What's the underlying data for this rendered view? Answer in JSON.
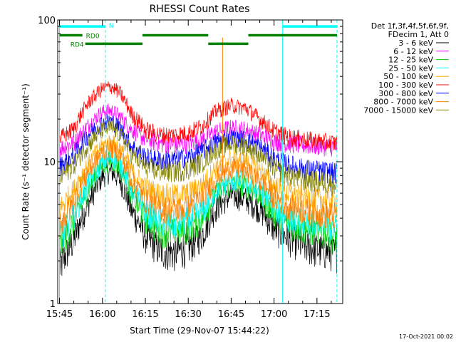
{
  "chart_data": {
    "type": "line",
    "title": "RHESSI Count Rates",
    "xlabel": "Start Time (29-Nov-07 15:44:22)",
    "ylabel": "Count Rate (s⁻¹ detector segment⁻¹)",
    "yscale": "log",
    "ylim": [
      1,
      100
    ],
    "xlim": [
      "15:44:22",
      "17:24:00"
    ],
    "x_ticks": [
      "15:45",
      "16:00",
      "16:15",
      "16:30",
      "16:45",
      "17:00",
      "17:15"
    ],
    "y_ticks": [
      "1",
      "10",
      "100"
    ],
    "grid": false,
    "legend": {
      "placement": "right",
      "header": [
        "Det 1f,3f,4f,5f,6f,9f,",
        "FDecim 1, Att 0"
      ]
    },
    "series": [
      {
        "name": "3 - 6 keV",
        "color": "#000000",
        "points": [
          [
            "15:45",
            1.8
          ],
          [
            "15:50",
            2.8
          ],
          [
            "15:55",
            5.0
          ],
          [
            "16:00",
            7.9
          ],
          [
            "16:03",
            8.6
          ],
          [
            "16:06",
            7.5
          ],
          [
            "16:10",
            4.6
          ],
          [
            "16:15",
            3.0
          ],
          [
            "16:20",
            2.4
          ],
          [
            "16:25",
            2.3
          ],
          [
            "16:30",
            2.5
          ],
          [
            "16:35",
            3.1
          ],
          [
            "16:40",
            4.8
          ],
          [
            "16:45",
            5.8
          ],
          [
            "16:50",
            5.5
          ],
          [
            "16:55",
            4.6
          ],
          [
            "17:00",
            3.4
          ],
          [
            "17:05",
            2.9
          ],
          [
            "17:10",
            2.6
          ],
          [
            "17:15",
            2.4
          ],
          [
            "17:22",
            2.3
          ]
        ]
      },
      {
        "name": "6 - 12 keV",
        "color": "#ff00ff",
        "points": [
          [
            "15:45",
            12.5
          ],
          [
            "15:50",
            13.5
          ],
          [
            "15:55",
            18.0
          ],
          [
            "16:00",
            22.5
          ],
          [
            "16:03",
            23.0
          ],
          [
            "16:06",
            21.0
          ],
          [
            "16:10",
            17.0
          ],
          [
            "16:15",
            14.5
          ],
          [
            "16:20",
            13.5
          ],
          [
            "16:25",
            13.2
          ],
          [
            "16:30",
            13.5
          ],
          [
            "16:35",
            14.5
          ],
          [
            "16:40",
            16.5
          ],
          [
            "16:45",
            17.5
          ],
          [
            "16:50",
            17.0
          ],
          [
            "16:55",
            15.5
          ],
          [
            "17:00",
            14.0
          ],
          [
            "17:05",
            13.5
          ],
          [
            "17:10",
            13.2
          ],
          [
            "17:15",
            13.0
          ],
          [
            "17:22",
            12.8
          ]
        ]
      },
      {
        "name": "12 - 25 keV",
        "color": "#00cc00",
        "points": [
          [
            "15:45",
            2.5
          ],
          [
            "15:50",
            3.8
          ],
          [
            "15:55",
            6.3
          ],
          [
            "16:00",
            9.5
          ],
          [
            "16:03",
            10.3
          ],
          [
            "16:06",
            9.2
          ],
          [
            "16:10",
            5.9
          ],
          [
            "16:15",
            4.0
          ],
          [
            "16:20",
            3.3
          ],
          [
            "16:25",
            3.2
          ],
          [
            "16:30",
            3.4
          ],
          [
            "16:35",
            4.0
          ],
          [
            "16:40",
            6.0
          ],
          [
            "16:45",
            7.0
          ],
          [
            "16:50",
            6.8
          ],
          [
            "16:55",
            5.8
          ],
          [
            "17:00",
            4.3
          ],
          [
            "17:05",
            3.7
          ],
          [
            "17:10",
            3.4
          ],
          [
            "17:15",
            3.2
          ],
          [
            "17:22",
            3.0
          ]
        ]
      },
      {
        "name": "25 - 50 keV",
        "color": "#00ffff",
        "points": [
          [
            "15:45",
            2.9
          ],
          [
            "15:50",
            4.2
          ],
          [
            "15:55",
            6.8
          ],
          [
            "16:00",
            10.0
          ],
          [
            "16:03",
            10.9
          ],
          [
            "16:06",
            9.8
          ],
          [
            "16:10",
            6.5
          ],
          [
            "16:15",
            4.5
          ],
          [
            "16:20",
            3.8
          ],
          [
            "16:25",
            3.7
          ],
          [
            "16:30",
            3.9
          ],
          [
            "16:35",
            4.5
          ],
          [
            "16:40",
            6.5
          ],
          [
            "16:45",
            7.5
          ],
          [
            "16:50",
            7.3
          ],
          [
            "16:55",
            6.3
          ],
          [
            "17:00",
            4.8
          ],
          [
            "17:05",
            4.1
          ],
          [
            "17:10",
            3.8
          ],
          [
            "17:15",
            3.6
          ],
          [
            "17:22",
            3.4
          ]
        ]
      },
      {
        "name": "50 - 100 keV",
        "color": "#ffaa00",
        "points": [
          [
            "15:45",
            4.6
          ],
          [
            "15:50",
            6.3
          ],
          [
            "15:55",
            9.5
          ],
          [
            "16:00",
            13.0
          ],
          [
            "16:03",
            13.8
          ],
          [
            "16:06",
            12.5
          ],
          [
            "16:10",
            8.8
          ],
          [
            "16:15",
            6.6
          ],
          [
            "16:20",
            5.9
          ],
          [
            "16:25",
            5.8
          ],
          [
            "16:30",
            6.0
          ],
          [
            "16:35",
            6.9
          ],
          [
            "16:40",
            9.2
          ],
          [
            "16:45",
            10.5
          ],
          [
            "16:50",
            10.2
          ],
          [
            "16:55",
            8.8
          ],
          [
            "17:00",
            6.8
          ],
          [
            "17:05",
            6.0
          ],
          [
            "17:10",
            5.7
          ],
          [
            "17:15",
            5.5
          ],
          [
            "17:22",
            5.3
          ]
        ]
      },
      {
        "name": "100 - 300 keV",
        "color": "#ff0000",
        "points": [
          [
            "15:45",
            14.5
          ],
          [
            "15:50",
            17.0
          ],
          [
            "15:55",
            26.0
          ],
          [
            "16:00",
            33.0
          ],
          [
            "16:03",
            34.0
          ],
          [
            "16:06",
            31.0
          ],
          [
            "16:10",
            22.0
          ],
          [
            "16:15",
            17.0
          ],
          [
            "16:20",
            15.5
          ],
          [
            "16:25",
            15.5
          ],
          [
            "16:30",
            16.0
          ],
          [
            "16:35",
            18.0
          ],
          [
            "16:40",
            23.0
          ],
          [
            "16:45",
            25.0
          ],
          [
            "16:50",
            24.0
          ],
          [
            "16:55",
            20.0
          ],
          [
            "17:00",
            16.5
          ],
          [
            "17:05",
            15.0
          ],
          [
            "17:10",
            14.5
          ],
          [
            "17:15",
            14.0
          ],
          [
            "17:22",
            13.5
          ]
        ]
      },
      {
        "name": "300 - 800 keV",
        "color": "#0000ff",
        "points": [
          [
            "15:45",
            9.2
          ],
          [
            "15:50",
            11.0
          ],
          [
            "15:55",
            15.5
          ],
          [
            "16:00",
            19.0
          ],
          [
            "16:03",
            19.5
          ],
          [
            "16:06",
            17.5
          ],
          [
            "16:10",
            13.0
          ],
          [
            "16:15",
            10.8
          ],
          [
            "16:20",
            10.3
          ],
          [
            "16:25",
            10.4
          ],
          [
            "16:30",
            10.8
          ],
          [
            "16:35",
            12.0
          ],
          [
            "16:40",
            14.0
          ],
          [
            "16:45",
            14.8
          ],
          [
            "16:50",
            14.5
          ],
          [
            "16:55",
            12.8
          ],
          [
            "17:00",
            10.5
          ],
          [
            "17:05",
            9.6
          ],
          [
            "17:10",
            9.0
          ],
          [
            "17:15",
            8.7
          ],
          [
            "17:22",
            8.4
          ]
        ]
      },
      {
        "name": "800 - 7000 keV",
        "color": "#ff7f00",
        "points": [
          [
            "15:45",
            3.6
          ],
          [
            "15:50",
            5.2
          ],
          [
            "15:55",
            8.3
          ],
          [
            "16:00",
            11.8
          ],
          [
            "16:03",
            12.6
          ],
          [
            "16:06",
            11.3
          ],
          [
            "16:10",
            7.6
          ],
          [
            "16:15",
            5.4
          ],
          [
            "16:20",
            4.7
          ],
          [
            "16:25",
            4.6
          ],
          [
            "16:30",
            4.8
          ],
          [
            "16:35",
            5.6
          ],
          [
            "16:40",
            7.8
          ],
          [
            "16:45",
            9.0
          ],
          [
            "16:50",
            8.7
          ],
          [
            "16:55",
            7.4
          ],
          [
            "17:00",
            5.7
          ],
          [
            "17:05",
            4.9
          ],
          [
            "17:10",
            4.6
          ],
          [
            "17:15",
            4.4
          ],
          [
            "17:22",
            4.2
          ]
        ]
      },
      {
        "name": "7000 - 15000 keV",
        "color": "#808000",
        "points": [
          [
            "15:45",
            7.8
          ],
          [
            "15:50",
            9.5
          ],
          [
            "15:55",
            13.2
          ],
          [
            "16:00",
            16.8
          ],
          [
            "16:03",
            17.5
          ],
          [
            "16:06",
            15.8
          ],
          [
            "16:10",
            11.5
          ],
          [
            "16:15",
            9.2
          ],
          [
            "16:20",
            8.6
          ],
          [
            "16:25",
            8.6
          ],
          [
            "16:30",
            8.9
          ],
          [
            "16:35",
            10.0
          ],
          [
            "16:40",
            12.4
          ],
          [
            "16:45",
            13.4
          ],
          [
            "16:50",
            13.0
          ],
          [
            "16:55",
            11.3
          ],
          [
            "17:00",
            9.0
          ],
          [
            "17:05",
            8.1
          ],
          [
            "17:10",
            7.6
          ],
          [
            "17:15",
            7.3
          ],
          [
            "17:22",
            7.0
          ]
        ]
      }
    ],
    "spike": {
      "time": "16:42",
      "value_max": 75,
      "color": "#ff7f00"
    },
    "vertical_lines": [
      {
        "time": "15:45",
        "style": "solid",
        "color": "#00ffff"
      },
      {
        "time": "16:01",
        "style": "dashed",
        "color": "#00ffff"
      },
      {
        "time": "17:03",
        "style": "solid",
        "color": "#00ffff"
      },
      {
        "time": "17:22",
        "style": "dashed",
        "color": "#00ffff"
      }
    ],
    "flags": [
      {
        "label": "N",
        "color": "#00ffff",
        "value": 90,
        "segments": [
          [
            "15:45",
            "16:01"
          ],
          [
            "17:03",
            "17:22"
          ]
        ]
      },
      {
        "label": "RD0",
        "color": "#008000",
        "value": 78,
        "segments": [
          [
            "15:45",
            "15:53"
          ],
          [
            "16:14",
            "16:37"
          ],
          [
            "16:51",
            "17:22"
          ]
        ]
      },
      {
        "label": "RD4",
        "color": "#008000",
        "value": 68,
        "segments": [
          [
            "15:54",
            "16:14"
          ],
          [
            "16:37",
            "16:51"
          ]
        ]
      }
    ],
    "footer": "17-Oct-2021 00:02"
  }
}
